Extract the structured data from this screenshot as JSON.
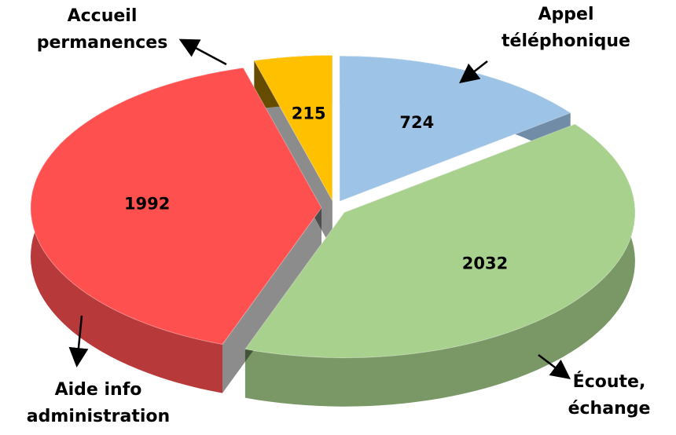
{
  "chart_data": {
    "type": "pie3d",
    "categories": [
      "Appel téléphonique",
      "Écoute, échange",
      "Aide info administration",
      "Accueil permanences"
    ],
    "values": [
      724,
      2032,
      1992,
      215
    ],
    "colors": [
      "#9dc3e6",
      "#a9d18e",
      "#ff5050",
      "#ffc000"
    ]
  }
}
